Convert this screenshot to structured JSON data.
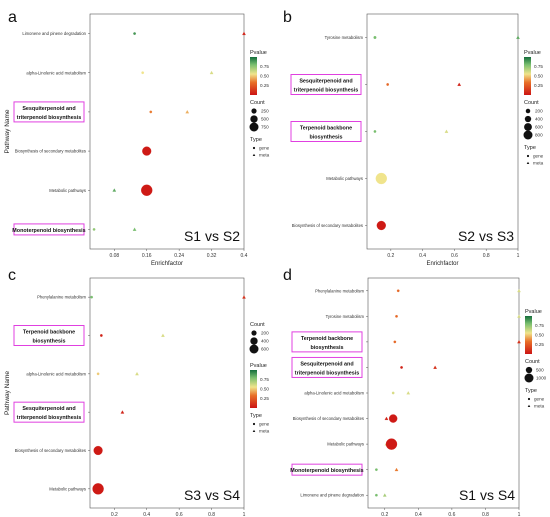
{
  "chart_data": [
    {
      "type": "scatter",
      "panel_letter": "a",
      "comparison": "S1 vs S2",
      "xlabel": "Enrichfactor",
      "ylabel": "Pathway Name",
      "xlim": [
        0.02,
        0.4
      ],
      "xticks": [
        0.08,
        0.16,
        0.24,
        0.32,
        0.4
      ],
      "pathways": [
        "Limonene and pinene degradation",
        "alpha-Linolenic acid metabolism",
        "Sesquiterpenoid and triterpenoid biosynthesis",
        "Biosynthesis of secondary metabolites",
        "Metabolic pathways",
        "Monoterpenoid biosynthesis"
      ],
      "highlighted": [
        "Sesquiterpenoid and triterpenoid biosynthesis",
        "Monoterpenoid biosynthesis"
      ],
      "legend_pvalue": {
        "title": "Pvalue",
        "ticks": [
          "0.75",
          "0.50",
          "0.25"
        ]
      },
      "legend_count": {
        "title": "Count",
        "ticks": [
          "250",
          "500",
          "750"
        ]
      },
      "legend_type": {
        "title": "Type",
        "items": [
          "gene",
          "meta"
        ]
      },
      "points": [
        {
          "pathway": "Limonene and pinene degradation",
          "x": 0.13,
          "count": 5,
          "type": "gene",
          "pvalue": 0.9
        },
        {
          "pathway": "Limonene and pinene degradation",
          "x": 0.4,
          "count": 10,
          "type": "meta",
          "pvalue": 0.05
        },
        {
          "pathway": "alpha-Linolenic acid metabolism",
          "x": 0.15,
          "count": 15,
          "type": "gene",
          "pvalue": 0.55
        },
        {
          "pathway": "alpha-Linolenic acid metabolism",
          "x": 0.32,
          "count": 5,
          "type": "meta",
          "pvalue": 0.6
        },
        {
          "pathway": "Sesquiterpenoid and triterpenoid biosynthesis",
          "x": 0.17,
          "count": 20,
          "type": "gene",
          "pvalue": 0.35
        },
        {
          "pathway": "Sesquiterpenoid and triterpenoid biosynthesis",
          "x": 0.26,
          "count": 10,
          "type": "meta",
          "pvalue": 0.45
        },
        {
          "pathway": "Biosynthesis of secondary metabolites",
          "x": 0.16,
          "count": 500,
          "type": "gene",
          "pvalue": 0.02
        },
        {
          "pathway": "Metabolic pathways",
          "x": 0.08,
          "count": 40,
          "type": "meta",
          "pvalue": 0.85
        },
        {
          "pathway": "Metabolic pathways",
          "x": 0.16,
          "count": 780,
          "type": "gene",
          "pvalue": 0.02
        },
        {
          "pathway": "Monoterpenoid biosynthesis",
          "x": 0.03,
          "count": 30,
          "type": "gene",
          "pvalue": 0.75
        },
        {
          "pathway": "Monoterpenoid biosynthesis",
          "x": 0.13,
          "count": 5,
          "type": "meta",
          "pvalue": 0.8
        }
      ]
    },
    {
      "type": "scatter",
      "panel_letter": "b",
      "comparison": "S2 vs S3",
      "xlabel": "Enrichfactor",
      "ylabel": "",
      "xlim": [
        0.05,
        1.0
      ],
      "xticks": [
        0.2,
        0.4,
        0.6,
        0.8,
        1.0
      ],
      "pathways": [
        "Tyrosine metabolism",
        "Sesquiterpenoid and triterpenoid biosynthesis",
        "Terpenoid backbone biosynthesis",
        "Metabolic pathways",
        "Biosynthesis of secondary metabolites"
      ],
      "highlighted": [
        "Sesquiterpenoid and triterpenoid biosynthesis",
        "Terpenoid backbone biosynthesis"
      ],
      "legend_pvalue": {
        "title": "Pvalue",
        "ticks": [
          "0.75",
          "0.50",
          "0.25"
        ]
      },
      "legend_count": {
        "title": "Count",
        "ticks": [
          "200",
          "400",
          "600",
          "800"
        ]
      },
      "legend_type": {
        "title": "Type",
        "items": [
          "gene",
          "meta"
        ]
      },
      "points": [
        {
          "pathway": "Tyrosine metabolism",
          "x": 0.1,
          "count": 20,
          "type": "gene",
          "pvalue": 0.8
        },
        {
          "pathway": "Tyrosine metabolism",
          "x": 1.0,
          "count": 5,
          "type": "meta",
          "pvalue": 0.85
        },
        {
          "pathway": "Sesquiterpenoid and triterpenoid biosynthesis",
          "x": 0.18,
          "count": 15,
          "type": "gene",
          "pvalue": 0.3
        },
        {
          "pathway": "Sesquiterpenoid and triterpenoid biosynthesis",
          "x": 0.63,
          "count": 15,
          "type": "meta",
          "pvalue": 0.05
        },
        {
          "pathway": "Terpenoid backbone biosynthesis",
          "x": 0.1,
          "count": 5,
          "type": "gene",
          "pvalue": 0.8
        },
        {
          "pathway": "Terpenoid backbone biosynthesis",
          "x": 0.55,
          "count": 10,
          "type": "meta",
          "pvalue": 0.6
        },
        {
          "pathway": "Metabolic pathways",
          "x": 0.14,
          "count": 350,
          "type": "gene",
          "pvalue": 0.55
        },
        {
          "pathway": "Biosynthesis of secondary metabolites",
          "x": 0.14,
          "count": 230,
          "type": "gene",
          "pvalue": 0.02
        }
      ]
    },
    {
      "type": "scatter",
      "panel_letter": "c",
      "comparison": "S3 vs S4",
      "xlabel": "Enrichfactor",
      "ylabel": "Pathway Name",
      "xlim": [
        0.05,
        1.0
      ],
      "xticks": [
        0.2,
        0.4,
        0.6,
        0.8,
        1.0
      ],
      "pathways": [
        "Phenylalanine metabolism",
        "Terpenoid backbone biosynthesis",
        "alpha-Linolenic acid metabolism",
        "Sesquiterpenoid and triterpenoid biosynthesis",
        "Biosynthesis of secondary metabolites",
        "Metabolic pathways"
      ],
      "highlighted": [
        "Terpenoid backbone biosynthesis",
        "Sesquiterpenoid and triterpenoid biosynthesis"
      ],
      "legend_pvalue": {
        "title": "Pvalue",
        "ticks": [
          "0.75",
          "0.50",
          "0.25"
        ]
      },
      "legend_count": {
        "title": "Count",
        "ticks": [
          "200",
          "400",
          "600"
        ]
      },
      "legend_type": {
        "title": "Type",
        "items": [
          "gene",
          "meta"
        ]
      },
      "points": [
        {
          "pathway": "Phenylalanine metabolism",
          "x": 0.06,
          "count": 20,
          "type": "gene",
          "pvalue": 0.8
        },
        {
          "pathway": "Phenylalanine metabolism",
          "x": 1.0,
          "count": 5,
          "type": "meta",
          "pvalue": 0.1
        },
        {
          "pathway": "Terpenoid backbone biosynthesis",
          "x": 0.12,
          "count": 15,
          "type": "gene",
          "pvalue": 0.05
        },
        {
          "pathway": "Terpenoid backbone biosynthesis",
          "x": 0.5,
          "count": 5,
          "type": "meta",
          "pvalue": 0.6
        },
        {
          "pathway": "alpha-Linolenic acid metabolism",
          "x": 0.1,
          "count": 15,
          "type": "gene",
          "pvalue": 0.5
        },
        {
          "pathway": "alpha-Linolenic acid metabolism",
          "x": 0.34,
          "count": 5,
          "type": "meta",
          "pvalue": 0.6
        },
        {
          "pathway": "Sesquiterpenoid and triterpenoid biosynthesis",
          "x": 0.25,
          "count": 15,
          "type": "meta",
          "pvalue": 0.05
        },
        {
          "pathway": "Biosynthesis of secondary metabolites",
          "x": 0.1,
          "count": 350,
          "type": "gene",
          "pvalue": 0.02
        },
        {
          "pathway": "Metabolic pathways",
          "x": 0.1,
          "count": 550,
          "type": "gene",
          "pvalue": 0.02
        }
      ]
    },
    {
      "type": "scatter",
      "panel_letter": "d",
      "comparison": "S1 vs S4",
      "xlabel": "Enrichfactor",
      "ylabel": "",
      "xlim": [
        0.1,
        1.0
      ],
      "xticks": [
        0.2,
        0.4,
        0.6,
        0.8,
        1.0
      ],
      "pathways": [
        "Phenylalanine metabolism",
        "Tyrosine metabolism",
        "Terpenoid backbone biosynthesis",
        "Sesquiterpenoid and triterpenoid biosynthesis",
        "alpha-Linolenic acid metabolism",
        "Biosynthesis of secondary metabolites",
        "Metabolic pathways",
        "Monoterpenoid biosynthesis",
        "Limonene and pinene degradation"
      ],
      "highlighted": [
        "Terpenoid backbone biosynthesis",
        "Sesquiterpenoid and triterpenoid biosynthesis",
        "Monoterpenoid biosynthesis"
      ],
      "legend_pvalue": {
        "title": "Pvalue",
        "ticks": [
          "0.75",
          "0.50",
          "0.25"
        ]
      },
      "legend_count": {
        "title": "Count",
        "ticks": [
          "500",
          "1000"
        ]
      },
      "legend_type": {
        "title": "Type",
        "items": [
          "gene",
          "meta"
        ]
      },
      "points": [
        {
          "pathway": "Phenylalanine metabolism",
          "x": 0.28,
          "count": 30,
          "type": "gene",
          "pvalue": 0.3
        },
        {
          "pathway": "Phenylalanine metabolism",
          "x": 1.0,
          "count": 5,
          "type": "meta",
          "pvalue": 0.6
        },
        {
          "pathway": "Tyrosine metabolism",
          "x": 0.27,
          "count": 30,
          "type": "gene",
          "pvalue": 0.3
        },
        {
          "pathway": "Tyrosine metabolism",
          "x": 1.0,
          "count": 5,
          "type": "meta",
          "pvalue": 0.6
        },
        {
          "pathway": "Terpenoid backbone biosynthesis",
          "x": 0.26,
          "count": 20,
          "type": "gene",
          "pvalue": 0.3
        },
        {
          "pathway": "Terpenoid backbone biosynthesis",
          "x": 1.0,
          "count": 5,
          "type": "meta",
          "pvalue": 0.1
        },
        {
          "pathway": "Sesquiterpenoid and triterpenoid biosynthesis",
          "x": 0.3,
          "count": 20,
          "type": "gene",
          "pvalue": 0.05
        },
        {
          "pathway": "Sesquiterpenoid and triterpenoid biosynthesis",
          "x": 0.5,
          "count": 15,
          "type": "meta",
          "pvalue": 0.1
        },
        {
          "pathway": "alpha-Linolenic acid metabolism",
          "x": 0.25,
          "count": 15,
          "type": "gene",
          "pvalue": 0.6
        },
        {
          "pathway": "alpha-Linolenic acid metabolism",
          "x": 0.34,
          "count": 5,
          "type": "meta",
          "pvalue": 0.6
        },
        {
          "pathway": "Biosynthesis of secondary metabolites",
          "x": 0.21,
          "count": 40,
          "type": "meta",
          "pvalue": 0.05
        },
        {
          "pathway": "Biosynthesis of secondary metabolites",
          "x": 0.25,
          "count": 650,
          "type": "gene",
          "pvalue": 0.02
        },
        {
          "pathway": "Metabolic pathways",
          "x": 0.21,
          "count": 40,
          "type": "meta",
          "pvalue": 0.6
        },
        {
          "pathway": "Metabolic pathways",
          "x": 0.24,
          "count": 1200,
          "type": "gene",
          "pvalue": 0.02
        },
        {
          "pathway": "Monoterpenoid biosynthesis",
          "x": 0.15,
          "count": 5,
          "type": "gene",
          "pvalue": 0.8
        },
        {
          "pathway": "Monoterpenoid biosynthesis",
          "x": 0.27,
          "count": 20,
          "type": "meta",
          "pvalue": 0.35
        },
        {
          "pathway": "Limonene and pinene degradation",
          "x": 0.15,
          "count": 5,
          "type": "gene",
          "pvalue": 0.8
        },
        {
          "pathway": "Limonene and pinene degradation",
          "x": 0.2,
          "count": 5,
          "type": "meta",
          "pvalue": 0.7
        }
      ]
    }
  ]
}
